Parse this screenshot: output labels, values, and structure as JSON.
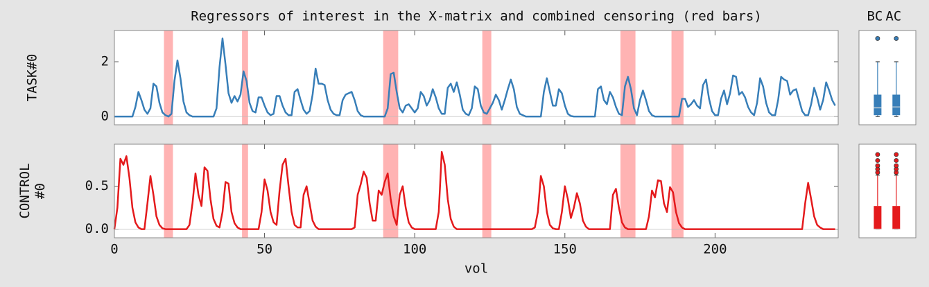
{
  "chart_data": [
    {
      "type": "line",
      "title": "Regressors of interest in the X-matrix and combined censoring (red bars)",
      "ylabel": "TASK#0",
      "xlim": [
        0,
        241
      ],
      "xticks": [
        0,
        50,
        100,
        150,
        200
      ],
      "xticklabels": false,
      "ylim": [
        -0.3,
        3.14
      ],
      "yticks": [
        0,
        2
      ],
      "censor_color": "#ffb3b3",
      "censor": [
        [
          16.5,
          19.5
        ],
        [
          42.5,
          44.5
        ],
        [
          89.5,
          94.5
        ],
        [
          122.5,
          125.5
        ],
        [
          168.5,
          173.5
        ],
        [
          185.5,
          189.5
        ]
      ],
      "x": [
        0,
        1,
        2,
        3,
        4,
        5,
        6,
        7,
        8,
        9,
        10,
        11,
        12,
        13,
        14,
        15,
        16,
        17,
        18,
        19,
        20,
        21,
        22,
        23,
        24,
        25,
        26,
        27,
        28,
        29,
        30,
        31,
        32,
        33,
        34,
        35,
        36,
        37,
        38,
        39,
        40,
        41,
        42,
        43,
        44,
        45,
        46,
        47,
        48,
        49,
        50,
        51,
        52,
        53,
        54,
        55,
        56,
        57,
        58,
        59,
        60,
        61,
        62,
        63,
        64,
        65,
        66,
        67,
        68,
        69,
        70,
        71,
        72,
        73,
        74,
        75,
        76,
        77,
        78,
        79,
        80,
        81,
        82,
        83,
        84,
        85,
        86,
        87,
        88,
        89,
        90,
        91,
        92,
        93,
        94,
        95,
        96,
        97,
        98,
        99,
        100,
        101,
        102,
        103,
        104,
        105,
        106,
        107,
        108,
        109,
        110,
        111,
        112,
        113,
        114,
        115,
        116,
        117,
        118,
        119,
        120,
        121,
        122,
        123,
        124,
        125,
        126,
        127,
        128,
        129,
        130,
        131,
        132,
        133,
        134,
        135,
        136,
        137,
        138,
        139,
        140,
        141,
        142,
        143,
        144,
        145,
        146,
        147,
        148,
        149,
        150,
        151,
        152,
        153,
        154,
        155,
        156,
        157,
        158,
        159,
        160,
        161,
        162,
        163,
        164,
        165,
        166,
        167,
        168,
        169,
        170,
        171,
        172,
        173,
        174,
        175,
        176,
        177,
        178,
        179,
        180,
        181,
        182,
        183,
        184,
        185,
        186,
        187,
        188,
        189,
        190,
        191,
        192,
        193,
        194,
        195,
        196,
        197,
        198,
        199,
        200,
        201,
        202,
        203,
        204,
        205,
        206,
        207,
        208,
        209,
        210,
        211,
        212,
        213,
        214,
        215,
        216,
        217,
        218,
        219,
        220,
        221,
        222,
        223,
        224,
        225,
        226,
        227,
        228,
        229,
        230,
        231,
        232,
        233,
        234,
        235,
        236,
        237,
        238,
        239,
        240
      ],
      "series": [
        {
          "color": "#377eb8",
          "values": [
            0,
            0,
            0,
            0,
            0,
            0,
            0,
            0.35,
            0.9,
            0.6,
            0.25,
            0.1,
            0.3,
            1.2,
            1.1,
            0.5,
            0.15,
            0.05,
            0,
            0.1,
            1.3,
            2.05,
            1.4,
            0.55,
            0.15,
            0.05,
            0,
            0,
            0,
            0,
            0,
            0,
            0,
            0,
            0.3,
            1.8,
            2.85,
            1.9,
            0.85,
            0.5,
            0.75,
            0.55,
            0.8,
            1.65,
            1.3,
            0.5,
            0.2,
            0.15,
            0.7,
            0.7,
            0.4,
            0.15,
            0.05,
            0.1,
            0.75,
            0.75,
            0.4,
            0.15,
            0.05,
            0.05,
            0.9,
            1.0,
            0.6,
            0.25,
            0.1,
            0.2,
            0.8,
            1.75,
            1.2,
            1.2,
            1.15,
            0.6,
            0.25,
            0.1,
            0.05,
            0.05,
            0.6,
            0.8,
            0.85,
            0.9,
            0.6,
            0.2,
            0.05,
            0,
            0,
            0,
            0,
            0,
            0,
            0,
            0,
            0.3,
            1.55,
            1.6,
            0.9,
            0.3,
            0.15,
            0.4,
            0.45,
            0.3,
            0.15,
            0.3,
            0.9,
            0.75,
            0.4,
            0.6,
            1.0,
            0.7,
            0.3,
            0.1,
            0.1,
            1.05,
            1.2,
            0.9,
            1.25,
            0.8,
            0.25,
            0.1,
            0.05,
            0.3,
            1.1,
            1.0,
            0.4,
            0.15,
            0.1,
            0.3,
            0.5,
            0.8,
            0.6,
            0.25,
            0.6,
            1.0,
            1.35,
            1.0,
            0.35,
            0.1,
            0.05,
            0,
            0,
            0,
            0,
            0,
            0,
            0.9,
            1.4,
            0.9,
            0.4,
            0.4,
            1.0,
            0.85,
            0.4,
            0.1,
            0.02,
            0,
            0,
            0,
            0,
            0,
            0,
            0,
            0,
            1.0,
            1.1,
            0.6,
            0.45,
            0.9,
            0.7,
            0.35,
            0.1,
            0.05,
            1.1,
            1.45,
            1.0,
            0.3,
            0.05,
            0.6,
            0.95,
            0.6,
            0.2,
            0.05,
            0,
            0,
            0,
            0,
            0,
            0,
            0,
            0,
            0,
            0.65,
            0.65,
            0.35,
            0.45,
            0.6,
            0.4,
            0.3,
            1.15,
            1.35,
            0.65,
            0.2,
            0.05,
            0.05,
            0.65,
            0.95,
            0.45,
            0.85,
            1.5,
            1.45,
            0.8,
            0.9,
            0.7,
            0.35,
            0.15,
            0.05,
            0.5,
            1.4,
            1.1,
            0.5,
            0.15,
            0.05,
            0.05,
            0.6,
            1.45,
            1.35,
            1.3,
            0.8,
            0.95,
            1.0,
            0.6,
            0.2,
            0.05,
            0.05,
            0.45,
            1.05,
            0.7,
            0.25,
            0.6,
            1.25,
            0.95,
            0.6,
            0.4
          ]
        }
      ]
    },
    {
      "type": "box",
      "categories": [
        "BC",
        "AC"
      ],
      "ylim": [
        -0.3,
        3.14
      ],
      "color": "#377eb8",
      "boxes": [
        {
          "whislo": 0,
          "q1": 0.05,
          "median": 0.32,
          "q3": 0.8,
          "whishi": 2.0,
          "fliers": [
            2.85
          ]
        },
        {
          "whislo": 0,
          "q1": 0.05,
          "median": 0.35,
          "q3": 0.8,
          "whishi": 2.0,
          "fliers": [
            2.85
          ]
        }
      ]
    },
    {
      "type": "line",
      "ylabel": "CONTROL\n#0",
      "xlabel": "vol",
      "xlim": [
        0,
        241
      ],
      "xticks": [
        0,
        50,
        100,
        150,
        200
      ],
      "xticklabels": true,
      "ylim": [
        -0.1,
        0.99
      ],
      "yticks": [
        {
          "value": 0,
          "label": "0.0"
        },
        0.5
      ],
      "censor_color": "#ffb3b3",
      "censor": [
        [
          16.5,
          19.5
        ],
        [
          42.5,
          44.5
        ],
        [
          89.5,
          94.5
        ],
        [
          122.5,
          125.5
        ],
        [
          168.5,
          173.5
        ],
        [
          185.5,
          189.5
        ]
      ],
      "x": [
        0,
        1,
        2,
        3,
        4,
        5,
        6,
        7,
        8,
        9,
        10,
        11,
        12,
        13,
        14,
        15,
        16,
        17,
        18,
        19,
        20,
        21,
        22,
        23,
        24,
        25,
        26,
        27,
        28,
        29,
        30,
        31,
        32,
        33,
        34,
        35,
        36,
        37,
        38,
        39,
        40,
        41,
        42,
        43,
        44,
        45,
        46,
        47,
        48,
        49,
        50,
        51,
        52,
        53,
        54,
        55,
        56,
        57,
        58,
        59,
        60,
        61,
        62,
        63,
        64,
        65,
        66,
        67,
        68,
        69,
        70,
        71,
        72,
        73,
        74,
        75,
        76,
        77,
        78,
        79,
        80,
        81,
        82,
        83,
        84,
        85,
        86,
        87,
        88,
        89,
        90,
        91,
        92,
        93,
        94,
        95,
        96,
        97,
        98,
        99,
        100,
        101,
        102,
        103,
        104,
        105,
        106,
        107,
        108,
        109,
        110,
        111,
        112,
        113,
        114,
        115,
        116,
        117,
        118,
        119,
        120,
        121,
        122,
        123,
        124,
        125,
        126,
        127,
        128,
        129,
        130,
        131,
        132,
        133,
        134,
        135,
        136,
        137,
        138,
        139,
        140,
        141,
        142,
        143,
        144,
        145,
        146,
        147,
        148,
        149,
        150,
        151,
        152,
        153,
        154,
        155,
        156,
        157,
        158,
        159,
        160,
        161,
        162,
        163,
        164,
        165,
        166,
        167,
        168,
        169,
        170,
        171,
        172,
        173,
        174,
        175,
        176,
        177,
        178,
        179,
        180,
        181,
        182,
        183,
        184,
        185,
        186,
        187,
        188,
        189,
        190,
        191,
        192,
        193,
        194,
        195,
        196,
        197,
        198,
        199,
        200,
        201,
        202,
        203,
        204,
        205,
        206,
        207,
        208,
        209,
        210,
        211,
        212,
        213,
        214,
        215,
        216,
        217,
        218,
        219,
        220,
        221,
        222,
        223,
        224,
        225,
        226,
        227,
        228,
        229,
        230,
        231,
        232,
        233,
        234,
        235,
        236,
        237,
        238,
        239,
        240
      ],
      "series": [
        {
          "color": "#e41a1c",
          "values": [
            0,
            0.25,
            0.82,
            0.75,
            0.85,
            0.6,
            0.25,
            0.08,
            0.02,
            0,
            0,
            0.3,
            0.62,
            0.4,
            0.15,
            0.05,
            0.01,
            0,
            0,
            0,
            0,
            0,
            0,
            0,
            0,
            0.05,
            0.3,
            0.65,
            0.4,
            0.27,
            0.72,
            0.68,
            0.35,
            0.12,
            0.04,
            0.02,
            0.2,
            0.55,
            0.53,
            0.2,
            0.07,
            0.02,
            0,
            0,
            0,
            0,
            0,
            0,
            0,
            0.2,
            0.58,
            0.45,
            0.2,
            0.08,
            0.05,
            0.45,
            0.75,
            0.82,
            0.5,
            0.2,
            0.05,
            0.02,
            0.02,
            0.4,
            0.5,
            0.3,
            0.1,
            0.03,
            0,
            0,
            0,
            0,
            0,
            0,
            0,
            0,
            0,
            0,
            0,
            0,
            0.02,
            0.4,
            0.52,
            0.67,
            0.6,
            0.3,
            0.1,
            0.1,
            0.45,
            0.4,
            0.55,
            0.65,
            0.35,
            0.15,
            0.05,
            0.4,
            0.5,
            0.25,
            0.08,
            0.02,
            0,
            0,
            0,
            0,
            0,
            0,
            0,
            0,
            0.2,
            0.9,
            0.75,
            0.35,
            0.12,
            0.03,
            0,
            0,
            0,
            0,
            0,
            0,
            0,
            0,
            0,
            0,
            0,
            0,
            0,
            0,
            0,
            0,
            0,
            0,
            0,
            0,
            0,
            0,
            0,
            0,
            0,
            0,
            0.02,
            0.2,
            0.62,
            0.5,
            0.2,
            0.05,
            0.01,
            0,
            0,
            0.2,
            0.5,
            0.35,
            0.13,
            0.25,
            0.42,
            0.3,
            0.1,
            0.03,
            0,
            0,
            0,
            0,
            0,
            0,
            0,
            0,
            0.4,
            0.47,
            0.25,
            0.08,
            0.02,
            0,
            0,
            0,
            0,
            0,
            0,
            0,
            0.15,
            0.45,
            0.37,
            0.57,
            0.56,
            0.3,
            0.2,
            0.49,
            0.43,
            0.2,
            0.07,
            0.02,
            0,
            0,
            0,
            0,
            0,
            0,
            0,
            0,
            0,
            0,
            0,
            0,
            0,
            0,
            0,
            0,
            0,
            0,
            0,
            0,
            0,
            0,
            0,
            0,
            0,
            0,
            0,
            0,
            0,
            0,
            0,
            0,
            0,
            0,
            0,
            0,
            0,
            0,
            0,
            0,
            0.3,
            0.54,
            0.35,
            0.15,
            0.05,
            0.02,
            0,
            0,
            0,
            0,
            0
          ]
        }
      ]
    },
    {
      "type": "box",
      "categories": [
        null,
        null
      ],
      "ylim": [
        -0.1,
        0.99
      ],
      "color": "#e41a1c",
      "boxes": [
        {
          "whislo": 0,
          "q1": 0,
          "median": 0,
          "q3": 0.27,
          "whishi": 0.63,
          "fliers": [
            0.66,
            0.7,
            0.74,
            0.8,
            0.87
          ]
        },
        {
          "whislo": 0,
          "q1": 0,
          "median": 0,
          "q3": 0.27,
          "whishi": 0.63,
          "fliers": [
            0.66,
            0.7,
            0.74,
            0.8,
            0.87
          ]
        }
      ]
    }
  ]
}
